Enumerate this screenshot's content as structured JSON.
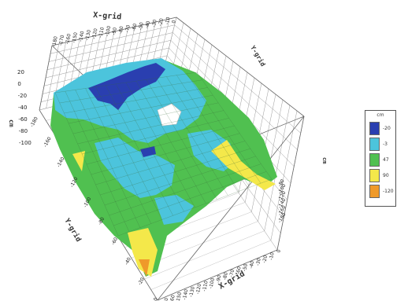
{
  "chart_data": {
    "type": "surface",
    "title": "",
    "x_axis": {
      "label": "X-grid",
      "ticks": [
        "-180",
        "-170",
        "-160",
        "-150",
        "-140",
        "-130",
        "-120",
        "-110",
        "-100",
        "-90",
        "-80",
        "-70",
        "-60",
        "-50",
        "-40",
        "-30",
        "-20",
        "-10",
        "0"
      ]
    },
    "y_axis": {
      "label": "Y-grid",
      "ticks": [
        "-180",
        "-160",
        "-140",
        "-120",
        "-100",
        "-80",
        "-60",
        "-40",
        "-20",
        "0"
      ]
    },
    "z_axis": {
      "label": "cm",
      "ticks": [
        "20",
        "0",
        "-20",
        "-40",
        "-60",
        "-80",
        "-100"
      ]
    },
    "right_axis": {
      "label": "cm",
      "ticks": [
        "-80",
        "-100",
        "-120",
        "-140",
        "-160",
        "-180"
      ]
    },
    "legend": {
      "title": "cm",
      "placement": "right",
      "items": [
        {
          "label": "-20",
          "color": "#2a3fb0"
        },
        {
          "label": "-3",
          "color": "#4cc4dc"
        },
        {
          "label": "47",
          "color": "#50c050"
        },
        {
          "label": "90",
          "color": "#f4e84a"
        },
        {
          "label": "-120",
          "color": "#ef9a2a"
        }
      ]
    },
    "grid": true
  }
}
